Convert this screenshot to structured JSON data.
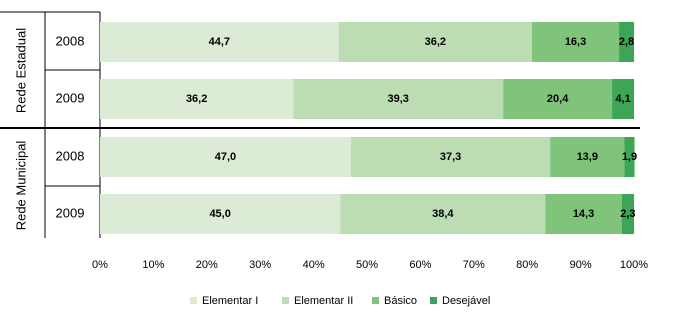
{
  "chart_data": {
    "type": "stacked-bar-horizontal",
    "groups": [
      "Rede Estadual",
      "Rede Municipal"
    ],
    "categories": [
      "2008",
      "2009",
      "2008",
      "2009"
    ],
    "series": [
      {
        "name": "Elementar I",
        "color": "#dcebd6",
        "values": [
          44.7,
          36.2,
          47.0,
          45.0
        ],
        "value_labels": [
          "44,7",
          "36,2",
          "47,0",
          "45,0"
        ]
      },
      {
        "name": "Elementar II",
        "color": "#bcdcb4",
        "values": [
          36.2,
          39.3,
          37.3,
          38.4
        ],
        "value_labels": [
          "36,2",
          "39,3",
          "37,3",
          "38,4"
        ]
      },
      {
        "name": "Básico",
        "color": "#80c47c",
        "values": [
          16.3,
          20.4,
          13.9,
          14.3
        ],
        "value_labels": [
          "16,3",
          "20,4",
          "13,9",
          "14,3"
        ]
      },
      {
        "name": "Desejável",
        "color": "#3ca556",
        "values": [
          2.8,
          4.1,
          1.9,
          2.3
        ],
        "value_labels": [
          "2,8",
          "4,1",
          "1,9",
          "2,3"
        ]
      }
    ],
    "xlim": [
      0,
      100
    ],
    "xticks": [
      {
        "value": 0,
        "label": "0%"
      },
      {
        "value": 10,
        "label": "10%"
      },
      {
        "value": 20,
        "label": "20%"
      },
      {
        "value": 30,
        "label": "30%"
      },
      {
        "value": 40,
        "label": "40%"
      },
      {
        "value": 50,
        "label": "50%"
      },
      {
        "value": 60,
        "label": "60%"
      },
      {
        "value": 70,
        "label": "70%"
      },
      {
        "value": 80,
        "label": "80%"
      },
      {
        "value": 90,
        "label": "90%"
      },
      {
        "value": 100,
        "label": "100%"
      }
    ],
    "legend": "bottom"
  }
}
